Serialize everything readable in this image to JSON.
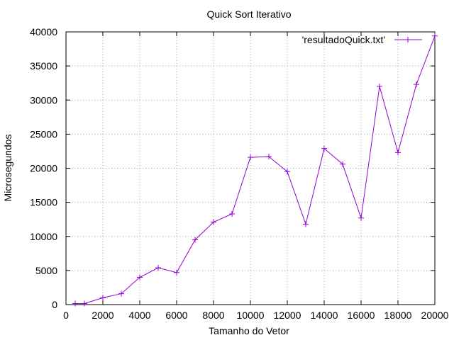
{
  "chart_data": {
    "type": "line",
    "title": "Quick Sort Iterativo",
    "xlabel": "Tamanho do Vetor",
    "ylabel": "Microsegundos",
    "xlim": [
      0,
      20000
    ],
    "ylim": [
      0,
      40000
    ],
    "xticks": [
      0,
      2000,
      4000,
      6000,
      8000,
      10000,
      12000,
      14000,
      16000,
      18000,
      20000
    ],
    "yticks": [
      0,
      5000,
      10000,
      15000,
      20000,
      25000,
      30000,
      35000,
      40000
    ],
    "grid": true,
    "legend_position": "top-right",
    "series": [
      {
        "name": "'resultadoQuick.txt'",
        "color": "#9400d3",
        "marker": "plus",
        "x": [
          500,
          1000,
          2000,
          3000,
          4000,
          5000,
          6000,
          7000,
          8000,
          9000,
          10000,
          11000,
          12000,
          13000,
          14000,
          15000,
          16000,
          17000,
          18000,
          19000,
          20000
        ],
        "y": [
          150,
          150,
          1000,
          1600,
          4000,
          5400,
          4700,
          9500,
          12100,
          13300,
          21600,
          21700,
          19500,
          11800,
          22900,
          20600,
          12700,
          32000,
          22300,
          32300,
          39400
        ]
      }
    ]
  }
}
